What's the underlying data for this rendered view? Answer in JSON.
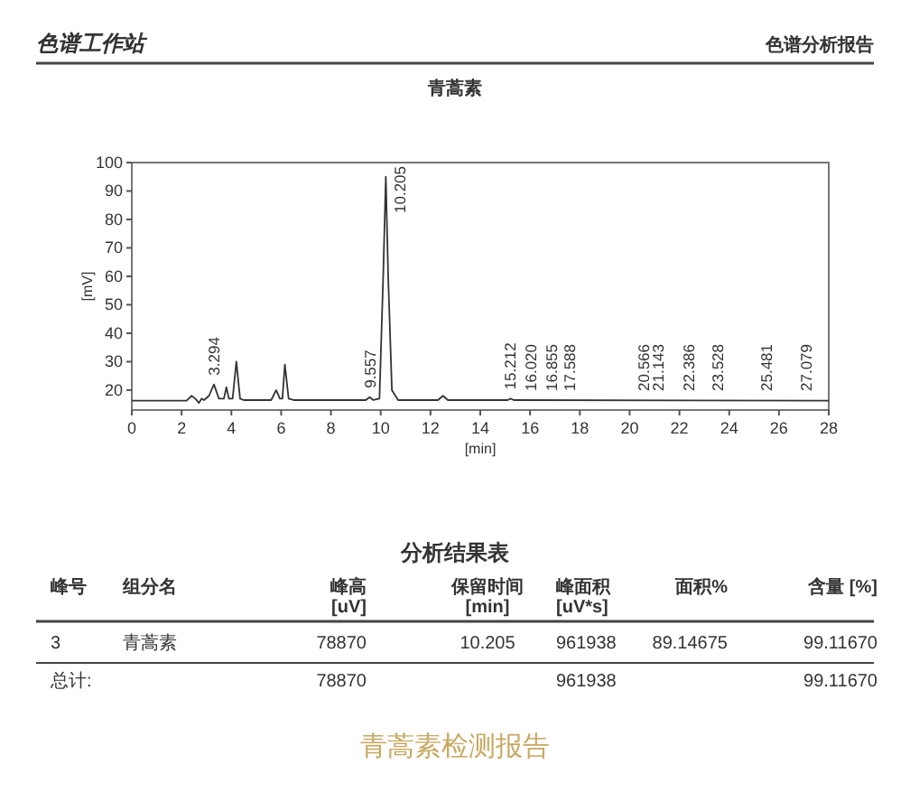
{
  "chart_data": [
    {
      "type": "line",
      "title": "青蒿素",
      "xlabel": "[min]",
      "ylabel": "[mV]",
      "x": [
        0,
        2.2,
        2.4,
        2.55,
        2.7,
        2.8,
        2.9,
        3.1,
        3.3,
        3.5,
        3.7,
        3.8,
        3.9,
        4.05,
        4.2,
        4.35,
        4.5,
        5.6,
        5.8,
        5.95,
        6.05,
        6.15,
        6.3,
        6.5,
        9.4,
        9.557,
        9.7,
        9.95,
        10.1,
        10.205,
        10.3,
        10.45,
        10.7,
        12.3,
        12.5,
        12.7,
        15.1,
        15.212,
        15.35,
        28
      ],
      "series": [
        {
          "color": "#333333",
          "values": [
            16.3,
            16.3,
            18,
            17,
            15.5,
            17,
            16.5,
            18,
            22,
            17,
            17,
            21,
            17,
            17,
            30,
            17,
            16.5,
            16.5,
            20,
            17,
            17,
            29,
            17,
            16.5,
            16.5,
            17.5,
            16.5,
            17,
            60,
            95,
            60,
            20,
            16.5,
            16.5,
            18,
            16.5,
            16.5,
            17,
            16.5,
            16.3
          ]
        }
      ],
      "xlim": [
        0,
        28
      ],
      "xticks": [
        0,
        2,
        4,
        6,
        8,
        10,
        12,
        14,
        16,
        18,
        20,
        22,
        24,
        26,
        28
      ],
      "ylim": [
        13,
        100
      ],
      "yticks": [
        20,
        30,
        40,
        50,
        60,
        70,
        80,
        90,
        100
      ],
      "grid": false,
      "marker": "none",
      "line_style": "solid",
      "annotations": [
        "色谱工作站",
        "色谱分析报告",
        {
          "text": "3.294",
          "x": 3.294,
          "y": 22
        },
        {
          "text": "9.557",
          "x": 9.557,
          "y": 17.5
        },
        {
          "text": "10.205",
          "x": 10.205,
          "y": 95
        },
        {
          "text": "15.212",
          "x": 15.212,
          "y": 17
        },
        {
          "text": "16.020",
          "x": 16.02,
          "y": 16.5
        },
        {
          "text": "16.855",
          "x": 16.855,
          "y": 16.5
        },
        {
          "text": "17.588",
          "x": 17.588,
          "y": 16.5
        },
        {
          "text": "20.566",
          "x": 20.566,
          "y": 16.5
        },
        {
          "text": "21.143",
          "x": 21.143,
          "y": 16.5
        },
        {
          "text": "22.386",
          "x": 22.386,
          "y": 16.5
        },
        {
          "text": "23.528",
          "x": 23.528,
          "y": 16.5
        },
        {
          "text": "25.481",
          "x": 25.481,
          "y": 16.5
        },
        {
          "text": "27.079",
          "x": 27.079,
          "y": 16.5
        }
      ]
    },
    {
      "type": "other",
      "title": "分析结果表",
      "annotations": [
        "峰号",
        "组分名",
        "峰高\n[uV]",
        "保留时间\n[min]",
        "峰面积\n[uV*s]",
        "面积%",
        "含量 [%]",
        "3",
        "青蒿素",
        "78870",
        "10.205",
        "961938",
        "89.14675",
        "99.11670",
        "总计:",
        null,
        "78870",
        null,
        "961938",
        null,
        "99.11670",
        "青蒿素检测报告"
      ]
    }
  ]
}
